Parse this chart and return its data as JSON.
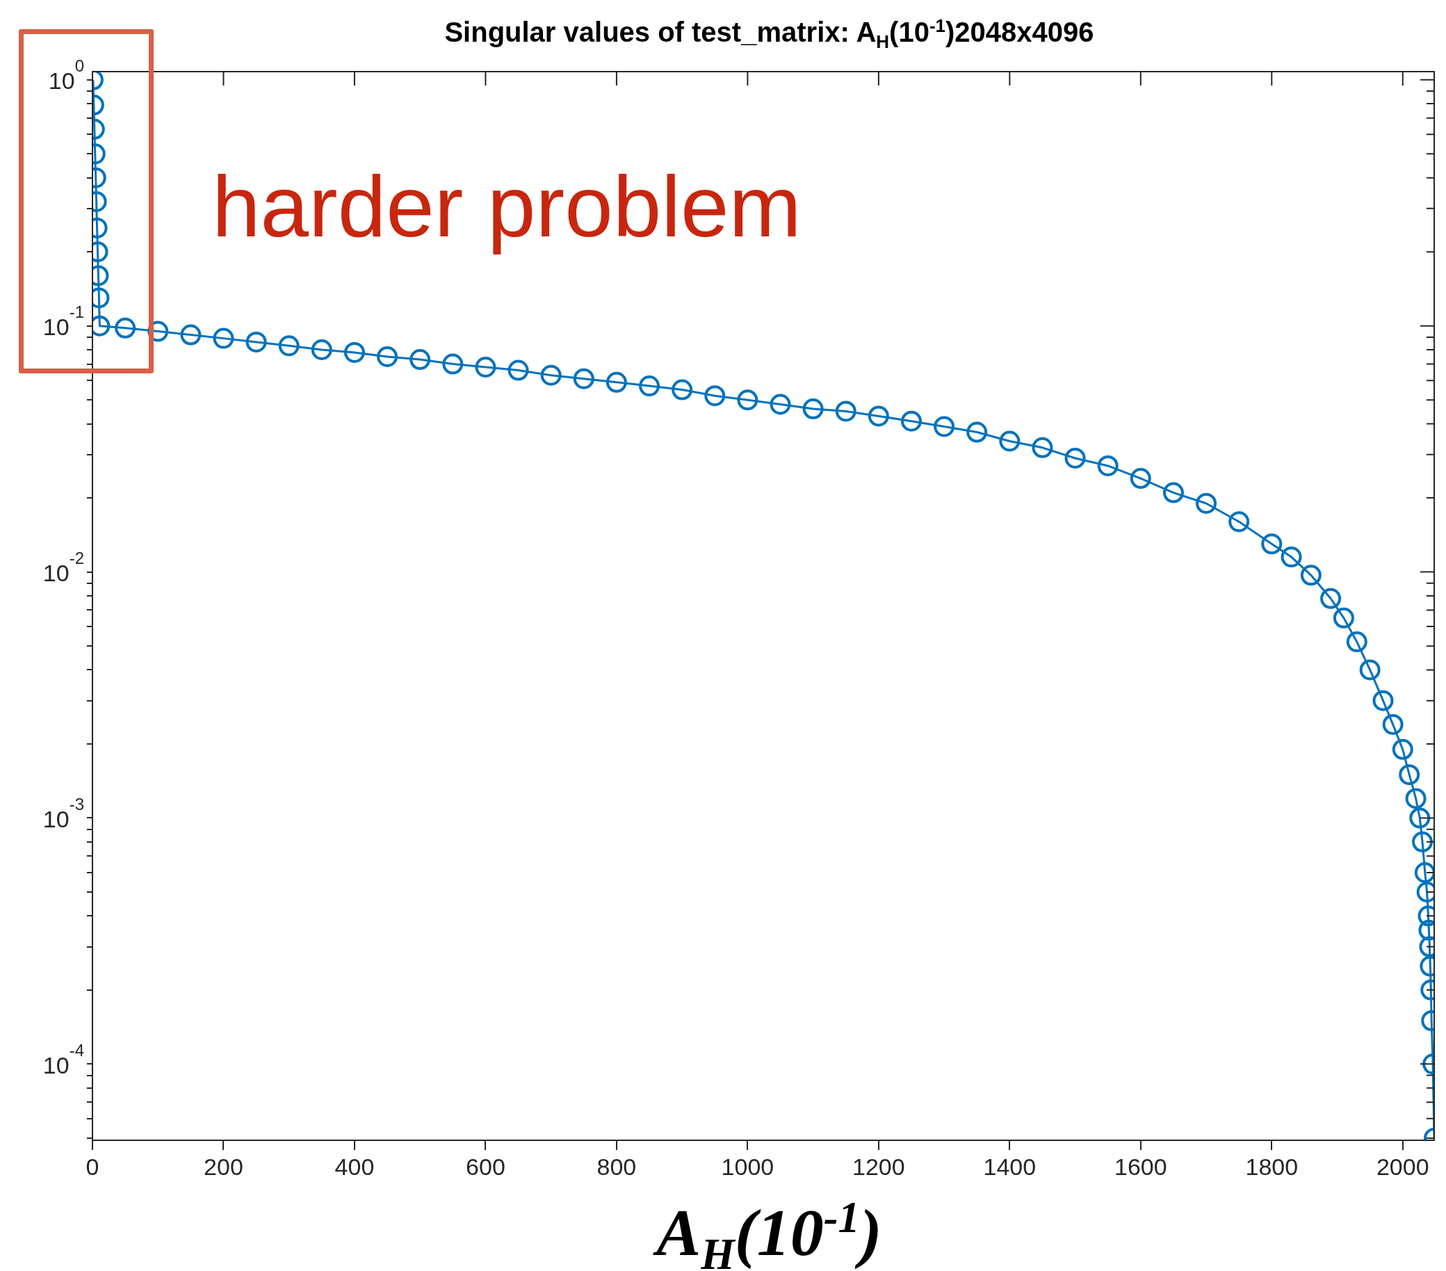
{
  "chart_data": {
    "type": "line",
    "title": "Singular values of test_matrix: A$_{H}$(10$^{-1}$)2048x4096",
    "xlabel": "A$_{H}$(10$^{-1}$)",
    "annotations": [
      "harder problem"
    ],
    "log": "y",
    "marker": "circle",
    "line_style": "solid",
    "grid": false,
    "legend": false,
    "xlim": [
      0,
      2048
    ],
    "xticks": [
      0,
      200,
      400,
      600,
      800,
      1000,
      1200,
      1400,
      1600,
      1800,
      2000
    ],
    "ylim": [
      4.9e-05,
      1.08
    ],
    "yticks": [
      {
        "value": 5e-05,
        "label": null
      },
      {
        "value": 6e-05,
        "label": null
      },
      {
        "value": 7e-05,
        "label": null
      },
      {
        "value": 8e-05,
        "label": null
      },
      {
        "value": 9e-05,
        "label": null
      },
      {
        "value": 0.0001,
        "label": "10$^{-4}$"
      },
      {
        "value": 0.0002,
        "label": null
      },
      {
        "value": 0.0003,
        "label": null
      },
      {
        "value": 0.0004,
        "label": null
      },
      {
        "value": 0.0005,
        "label": null
      },
      {
        "value": 0.0006,
        "label": null
      },
      {
        "value": 0.0007,
        "label": null
      },
      {
        "value": 0.0008,
        "label": null
      },
      {
        "value": 0.0009,
        "label": null
      },
      {
        "value": 0.001,
        "label": "10$^{-3}$"
      },
      {
        "value": 0.002,
        "label": null
      },
      {
        "value": 0.003,
        "label": null
      },
      {
        "value": 0.004,
        "label": null
      },
      {
        "value": 0.005,
        "label": null
      },
      {
        "value": 0.006,
        "label": null
      },
      {
        "value": 0.007,
        "label": null
      },
      {
        "value": 0.008,
        "label": null
      },
      {
        "value": 0.009,
        "label": null
      },
      {
        "value": 0.01,
        "label": "10$^{-2}$"
      },
      {
        "value": 0.02,
        "label": null
      },
      {
        "value": 0.03,
        "label": null
      },
      {
        "value": 0.04,
        "label": null
      },
      {
        "value": 0.05,
        "label": null
      },
      {
        "value": 0.06,
        "label": null
      },
      {
        "value": 0.07,
        "label": null
      },
      {
        "value": 0.08,
        "label": null
      },
      {
        "value": 0.09,
        "label": null
      },
      {
        "value": 0.1,
        "label": "10$^{-1}$"
      },
      {
        "value": 0.2,
        "label": null
      },
      {
        "value": 0.3,
        "label": null
      },
      {
        "value": 0.4,
        "label": null
      },
      {
        "value": 0.5,
        "label": null
      },
      {
        "value": 0.6,
        "label": null
      },
      {
        "value": 0.7,
        "label": null
      },
      {
        "value": 0.8,
        "label": null
      },
      {
        "value": 0.9,
        "label": null
      },
      {
        "value": 1,
        "label": "10$^{0}$"
      }
    ],
    "series": [
      {
        "color": "#0072bd",
        "x": [
          1,
          2,
          3,
          4,
          5,
          6,
          7,
          8,
          9,
          10,
          11,
          50,
          100,
          150,
          200,
          250,
          300,
          350,
          400,
          450,
          500,
          550,
          600,
          650,
          700,
          750,
          800,
          850,
          900,
          950,
          1000,
          1050,
          1100,
          1150,
          1200,
          1250,
          1300,
          1350,
          1400,
          1450,
          1500,
          1550,
          1600,
          1650,
          1700,
          1750,
          1800,
          1830,
          1860,
          1890,
          1910,
          1930,
          1950,
          1970,
          1985,
          2000,
          2010,
          2020,
          2026,
          2030,
          2034,
          2037,
          2039,
          2040,
          2041,
          2042,
          2043,
          2044,
          2046,
          2048
        ],
        "values": [
          1,
          0.79,
          0.63,
          0.5,
          0.4,
          0.32,
          0.25,
          0.2,
          0.16,
          0.13,
          0.1,
          0.098,
          0.095,
          0.092,
          0.089,
          0.086,
          0.083,
          0.08,
          0.078,
          0.075,
          0.073,
          0.07,
          0.068,
          0.066,
          0.063,
          0.061,
          0.059,
          0.057,
          0.055,
          0.052,
          0.05,
          0.048,
          0.046,
          0.045,
          0.043,
          0.041,
          0.039,
          0.037,
          0.034,
          0.032,
          0.029,
          0.027,
          0.024,
          0.021,
          0.019,
          0.016,
          0.013,
          0.0115,
          0.0097,
          0.0078,
          0.0065,
          0.0052,
          0.004,
          0.003,
          0.0024,
          0.0019,
          0.0015,
          0.0012,
          0.001,
          0.0008,
          0.0006,
          0.0005,
          0.0004,
          0.00035,
          0.0003,
          0.00025,
          0.0002,
          0.00015,
          0.0001,
          5e-05
        ]
      }
    ]
  }
}
